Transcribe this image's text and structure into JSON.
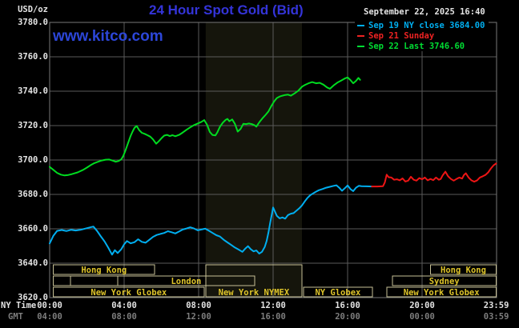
{
  "header": {
    "unit_label": "USD/oz",
    "title": "24 Hour Spot Gold (Bid)",
    "watermark": "www.kitco.com",
    "datetime": "September 22, 2025 16:40"
  },
  "legend": [
    {
      "label": "Sep 19 NY close 3684.00",
      "color": "#00AEEF"
    },
    {
      "label": "Sep 21 Sunday",
      "color": "#EE2222"
    },
    {
      "label": "Sep 22 Last 3746.60",
      "color": "#00DD33"
    }
  ],
  "colors": {
    "background": "#000000",
    "title": "#3434D9",
    "watermark": "#2C46D8",
    "text": "#E4E4E4",
    "text_dim": "#7E7E7E",
    "grid": "#5A5A5A",
    "border": "#777777",
    "band": "#15150C",
    "session_border": "#C6C096",
    "session_text": "#DEC42A",
    "sep19": "#00AEEF",
    "sep21": "#EE1515",
    "sep22": "#00DC20"
  },
  "axes": {
    "ny_row_label": "NY Time",
    "gmt_row_label": "GMT",
    "y_ticks": [
      {
        "v": 3780,
        "label": "3780.0"
      },
      {
        "v": 3760,
        "label": "3760.0"
      },
      {
        "v": 3740,
        "label": "3740.0"
      },
      {
        "v": 3720,
        "label": "3720.0"
      },
      {
        "v": 3700,
        "label": "3700.0"
      },
      {
        "v": 3680,
        "label": "3680.0"
      },
      {
        "v": 3660,
        "label": "3660.0"
      },
      {
        "v": 3640,
        "label": "3640.0"
      },
      {
        "v": 3620,
        "label": "3620.0"
      }
    ],
    "x_ticks": [
      {
        "t": 0,
        "ny": "00:00",
        "gmt": "04:00"
      },
      {
        "t": 4,
        "ny": "04:00",
        "gmt": "08:00"
      },
      {
        "t": 8,
        "ny": "08:00",
        "gmt": "12:00"
      },
      {
        "t": 12,
        "ny": "12:00",
        "gmt": "16:00"
      },
      {
        "t": 16,
        "ny": "16:00",
        "gmt": "20:00"
      },
      {
        "t": 20,
        "ny": "20:00",
        "gmt": "00:00"
      },
      {
        "t": 23.983,
        "ny": "23:59",
        "gmt": "03:59"
      }
    ]
  },
  "sessions": [
    {
      "row": 1,
      "t0": 0.2,
      "t1": 5.63,
      "label": "Hong Kong"
    },
    {
      "row": 1,
      "t0": 20.45,
      "t1": 23.98,
      "label": "Hong Kong"
    },
    {
      "row": 2,
      "t0": 0.2,
      "t1": 1.12,
      "label": ""
    },
    {
      "row": 2,
      "t0": 1.12,
      "t1": 3.66,
      "label": ""
    },
    {
      "row": 2,
      "t0": 3.66,
      "t1": 11.0,
      "label": "London"
    },
    {
      "row": 2,
      "t0": 18.4,
      "t1": 23.98,
      "label": "Sydney"
    },
    {
      "row": 3,
      "t0": 0.2,
      "t1": 8.3,
      "label": "New York Globex"
    },
    {
      "row": 3,
      "t0": 8.38,
      "t1": 13.55,
      "label": "New York NYMEX",
      "tall": true
    },
    {
      "row": 3,
      "t0": 13.63,
      "t1": 17.33,
      "label": "NY Globex"
    },
    {
      "row": 3,
      "t0": 18.1,
      "t1": 23.98,
      "label": "New York Globex"
    }
  ],
  "chart_data": {
    "type": "line",
    "title": "24 Hour Spot Gold (Bid)",
    "ylabel": "USD/oz",
    "ylim": [
      3620,
      3780
    ],
    "y_tick_step": 20,
    "xlim_hours": [
      0,
      24
    ],
    "grid": true,
    "nymex_band_hours": [
      8.38,
      13.55
    ],
    "series": [
      {
        "name": "Sep 19 NY close",
        "color_key": "sep19",
        "points": [
          [
            0,
            3651.5
          ],
          [
            0.2,
            3656
          ],
          [
            0.4,
            3658.8
          ],
          [
            0.65,
            3659.3
          ],
          [
            0.9,
            3658.7
          ],
          [
            1.15,
            3659.4
          ],
          [
            1.4,
            3659
          ],
          [
            1.65,
            3659.4
          ],
          [
            1.9,
            3660.1
          ],
          [
            2.15,
            3660.8
          ],
          [
            2.35,
            3661.3
          ],
          [
            2.55,
            3658.7
          ],
          [
            2.75,
            3655.6
          ],
          [
            2.95,
            3652.6
          ],
          [
            3.15,
            3649
          ],
          [
            3.35,
            3645
          ],
          [
            3.5,
            3647.6
          ],
          [
            3.65,
            3645.9
          ],
          [
            3.85,
            3648.2
          ],
          [
            4,
            3651
          ],
          [
            4.15,
            3652.9
          ],
          [
            4.35,
            3651.6
          ],
          [
            4.55,
            3652.2
          ],
          [
            4.75,
            3653.9
          ],
          [
            4.95,
            3652.4
          ],
          [
            5.15,
            3651.9
          ],
          [
            5.35,
            3653.6
          ],
          [
            5.55,
            3655.3
          ],
          [
            5.75,
            3656.4
          ],
          [
            5.95,
            3657
          ],
          [
            6.15,
            3657.6
          ],
          [
            6.35,
            3658.6
          ],
          [
            6.55,
            3658
          ],
          [
            6.75,
            3657.3
          ],
          [
            6.95,
            3658.4
          ],
          [
            7.15,
            3659.6
          ],
          [
            7.35,
            3660.2
          ],
          [
            7.55,
            3660.9
          ],
          [
            7.75,
            3660.2
          ],
          [
            7.95,
            3659.1
          ],
          [
            8.15,
            3659.6
          ],
          [
            8.35,
            3660.1
          ],
          [
            8.55,
            3658.9
          ],
          [
            8.75,
            3657.6
          ],
          [
            8.95,
            3656.3
          ],
          [
            9.15,
            3655.5
          ],
          [
            9.35,
            3653.6
          ],
          [
            9.55,
            3652.1
          ],
          [
            9.75,
            3650.6
          ],
          [
            9.95,
            3649.1
          ],
          [
            10.15,
            3647.9
          ],
          [
            10.35,
            3646.6
          ],
          [
            10.5,
            3648.4
          ],
          [
            10.65,
            3649.9
          ],
          [
            10.8,
            3648.1
          ],
          [
            10.95,
            3646.9
          ],
          [
            11.1,
            3647.4
          ],
          [
            11.25,
            3645.6
          ],
          [
            11.4,
            3646.6
          ],
          [
            11.55,
            3649.4
          ],
          [
            11.65,
            3652.9
          ],
          [
            11.75,
            3657.9
          ],
          [
            11.85,
            3663.9
          ],
          [
            11.95,
            3669.4
          ],
          [
            12,
            3672.4
          ],
          [
            12.1,
            3670
          ],
          [
            12.2,
            3667.6
          ],
          [
            12.35,
            3666.1
          ],
          [
            12.5,
            3666.6
          ],
          [
            12.65,
            3665.9
          ],
          [
            12.8,
            3668
          ],
          [
            12.95,
            3668.8
          ],
          [
            13.1,
            3669.1
          ],
          [
            13.25,
            3670.5
          ],
          [
            13.4,
            3671.9
          ],
          [
            13.55,
            3673.6
          ],
          [
            13.7,
            3675.9
          ],
          [
            13.85,
            3678
          ],
          [
            14,
            3679.6
          ],
          [
            14.15,
            3680.6
          ],
          [
            14.3,
            3681.6
          ],
          [
            14.45,
            3682.4
          ],
          [
            14.65,
            3683.1
          ],
          [
            14.85,
            3683.9
          ],
          [
            15.05,
            3684.4
          ],
          [
            15.25,
            3685
          ],
          [
            15.4,
            3685.3
          ],
          [
            15.55,
            3683.9
          ],
          [
            15.7,
            3682.1
          ],
          [
            15.85,
            3683.6
          ],
          [
            16,
            3685.2
          ],
          [
            16.15,
            3683.1
          ],
          [
            16.3,
            3681.9
          ],
          [
            16.45,
            3683.9
          ],
          [
            16.6,
            3685
          ],
          [
            16.75,
            3684.8
          ],
          [
            17,
            3684.7
          ],
          [
            17.3,
            3684.6
          ]
        ]
      },
      {
        "name": "Sep 21 Sunday",
        "color_key": "sep21",
        "points": [
          [
            17.3,
            3684.6
          ],
          [
            17.6,
            3684.6
          ],
          [
            17.9,
            3684.8
          ],
          [
            18,
            3687
          ],
          [
            18.1,
            3691.5
          ],
          [
            18.2,
            3690
          ],
          [
            18.35,
            3689.8
          ],
          [
            18.5,
            3688.5
          ],
          [
            18.65,
            3688.8
          ],
          [
            18.8,
            3688.2
          ],
          [
            18.95,
            3689.3
          ],
          [
            19.1,
            3687.5
          ],
          [
            19.25,
            3688
          ],
          [
            19.4,
            3690.3
          ],
          [
            19.55,
            3688.5
          ],
          [
            19.7,
            3688
          ],
          [
            19.85,
            3689.5
          ],
          [
            20,
            3688.8
          ],
          [
            20.15,
            3689.8
          ],
          [
            20.3,
            3688.2
          ],
          [
            20.45,
            3689
          ],
          [
            20.6,
            3688.3
          ],
          [
            20.75,
            3689.8
          ],
          [
            20.9,
            3688.5
          ],
          [
            21,
            3689
          ],
          [
            21.1,
            3691
          ],
          [
            21.25,
            3693.2
          ],
          [
            21.4,
            3690.5
          ],
          [
            21.55,
            3689
          ],
          [
            21.7,
            3688
          ],
          [
            21.85,
            3689
          ],
          [
            22,
            3689.8
          ],
          [
            22.15,
            3689.2
          ],
          [
            22.25,
            3691.3
          ],
          [
            22.35,
            3692.3
          ],
          [
            22.5,
            3689.8
          ],
          [
            22.65,
            3688.2
          ],
          [
            22.8,
            3687.4
          ],
          [
            22.95,
            3688.1
          ],
          [
            23.1,
            3689.8
          ],
          [
            23.25,
            3690.5
          ],
          [
            23.4,
            3691.3
          ],
          [
            23.55,
            3692.8
          ],
          [
            23.7,
            3695.1
          ],
          [
            23.85,
            3697
          ],
          [
            23.98,
            3698
          ]
        ]
      },
      {
        "name": "Sep 22 Last",
        "color_key": "sep22",
        "points": [
          [
            0,
            3696
          ],
          [
            0.17,
            3694.5
          ],
          [
            0.4,
            3692.5
          ],
          [
            0.6,
            3691.5
          ],
          [
            0.8,
            3691
          ],
          [
            1,
            3691.3
          ],
          [
            1.2,
            3691.8
          ],
          [
            1.5,
            3692.8
          ],
          [
            1.8,
            3694.3
          ],
          [
            2,
            3695.6
          ],
          [
            2.2,
            3697
          ],
          [
            2.4,
            3698.2
          ],
          [
            2.6,
            3699
          ],
          [
            2.8,
            3699.7
          ],
          [
            3,
            3700.2
          ],
          [
            3.2,
            3700.3
          ],
          [
            3.4,
            3699.6
          ],
          [
            3.55,
            3699
          ],
          [
            3.7,
            3699.4
          ],
          [
            3.85,
            3700.4
          ],
          [
            3.95,
            3702.3
          ],
          [
            4.05,
            3705
          ],
          [
            4.15,
            3708
          ],
          [
            4.25,
            3711
          ],
          [
            4.35,
            3714
          ],
          [
            4.45,
            3716.5
          ],
          [
            4.55,
            3718.6
          ],
          [
            4.67,
            3719.8
          ],
          [
            4.8,
            3717.5
          ],
          [
            4.95,
            3715.8
          ],
          [
            5.1,
            3715.2
          ],
          [
            5.25,
            3714.4
          ],
          [
            5.4,
            3713.6
          ],
          [
            5.55,
            3712
          ],
          [
            5.72,
            3709.5
          ],
          [
            5.85,
            3710.8
          ],
          [
            6,
            3712.6
          ],
          [
            6.15,
            3714.2
          ],
          [
            6.3,
            3714.6
          ],
          [
            6.45,
            3713.9
          ],
          [
            6.6,
            3714.4
          ],
          [
            6.75,
            3713.8
          ],
          [
            6.95,
            3714.6
          ],
          [
            7.15,
            3716
          ],
          [
            7.35,
            3717.6
          ],
          [
            7.55,
            3719
          ],
          [
            7.75,
            3720.3
          ],
          [
            7.95,
            3721.2
          ],
          [
            8.15,
            3722.2
          ],
          [
            8.3,
            3723.2
          ],
          [
            8.45,
            3720.5
          ],
          [
            8.6,
            3716.3
          ],
          [
            8.75,
            3714.5
          ],
          [
            8.9,
            3714.3
          ],
          [
            9,
            3716
          ],
          [
            9.15,
            3719.4
          ],
          [
            9.3,
            3721.7
          ],
          [
            9.45,
            3723.3
          ],
          [
            9.55,
            3723.9
          ],
          [
            9.65,
            3722.5
          ],
          [
            9.8,
            3723.6
          ],
          [
            9.95,
            3721
          ],
          [
            10.1,
            3716.5
          ],
          [
            10.25,
            3718
          ],
          [
            10.4,
            3721
          ],
          [
            10.55,
            3720.9
          ],
          [
            10.7,
            3721.2
          ],
          [
            10.85,
            3720.9
          ],
          [
            11,
            3720.2
          ],
          [
            11.1,
            3719.4
          ],
          [
            11.2,
            3721
          ],
          [
            11.3,
            3722.5
          ],
          [
            11.45,
            3724.5
          ],
          [
            11.6,
            3726.3
          ],
          [
            11.75,
            3728.3
          ],
          [
            11.9,
            3731.3
          ],
          [
            12.05,
            3734
          ],
          [
            12.2,
            3736
          ],
          [
            12.35,
            3736.9
          ],
          [
            12.5,
            3737.4
          ],
          [
            12.65,
            3737.8
          ],
          [
            12.8,
            3738
          ],
          [
            12.95,
            3737.4
          ],
          [
            13.15,
            3738.7
          ],
          [
            13.35,
            3740.3
          ],
          [
            13.55,
            3742.6
          ],
          [
            13.7,
            3743.6
          ],
          [
            13.9,
            3744.6
          ],
          [
            14.1,
            3745.3
          ],
          [
            14.3,
            3744.6
          ],
          [
            14.5,
            3744.9
          ],
          [
            14.7,
            3743.8
          ],
          [
            14.9,
            3742.2
          ],
          [
            15.05,
            3741.4
          ],
          [
            15.25,
            3743.4
          ],
          [
            15.45,
            3745
          ],
          [
            15.65,
            3746.2
          ],
          [
            15.85,
            3747.4
          ],
          [
            16,
            3748
          ],
          [
            16.15,
            3746.5
          ],
          [
            16.3,
            3744.6
          ],
          [
            16.45,
            3746
          ],
          [
            16.58,
            3747.7
          ],
          [
            16.67,
            3746.6
          ]
        ]
      }
    ]
  }
}
